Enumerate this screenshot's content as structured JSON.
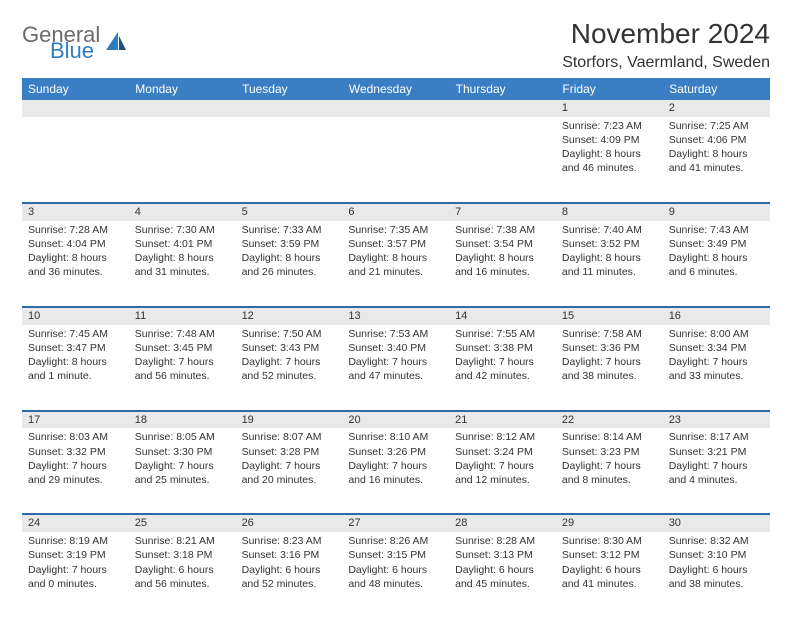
{
  "brand": {
    "general": "General",
    "blue": "Blue"
  },
  "title": "November 2024",
  "location": "Storfors, Vaermland, Sweden",
  "colors": {
    "header_bg": "#3a7fc4",
    "rule": "#2e6aa8",
    "daynum_bg": "#e9e9e9",
    "text": "#333333",
    "logo_gray": "#6b6b6b",
    "logo_blue": "#2f7ec0"
  },
  "weekdays": [
    "Sunday",
    "Monday",
    "Tuesday",
    "Wednesday",
    "Thursday",
    "Friday",
    "Saturday"
  ],
  "weeks": [
    [
      {
        "n": "",
        "sr": "",
        "ss": "",
        "dl": ""
      },
      {
        "n": "",
        "sr": "",
        "ss": "",
        "dl": ""
      },
      {
        "n": "",
        "sr": "",
        "ss": "",
        "dl": ""
      },
      {
        "n": "",
        "sr": "",
        "ss": "",
        "dl": ""
      },
      {
        "n": "",
        "sr": "",
        "ss": "",
        "dl": ""
      },
      {
        "n": "1",
        "sr": "Sunrise: 7:23 AM",
        "ss": "Sunset: 4:09 PM",
        "dl": "Daylight: 8 hours and 46 minutes."
      },
      {
        "n": "2",
        "sr": "Sunrise: 7:25 AM",
        "ss": "Sunset: 4:06 PM",
        "dl": "Daylight: 8 hours and 41 minutes."
      }
    ],
    [
      {
        "n": "3",
        "sr": "Sunrise: 7:28 AM",
        "ss": "Sunset: 4:04 PM",
        "dl": "Daylight: 8 hours and 36 minutes."
      },
      {
        "n": "4",
        "sr": "Sunrise: 7:30 AM",
        "ss": "Sunset: 4:01 PM",
        "dl": "Daylight: 8 hours and 31 minutes."
      },
      {
        "n": "5",
        "sr": "Sunrise: 7:33 AM",
        "ss": "Sunset: 3:59 PM",
        "dl": "Daylight: 8 hours and 26 minutes."
      },
      {
        "n": "6",
        "sr": "Sunrise: 7:35 AM",
        "ss": "Sunset: 3:57 PM",
        "dl": "Daylight: 8 hours and 21 minutes."
      },
      {
        "n": "7",
        "sr": "Sunrise: 7:38 AM",
        "ss": "Sunset: 3:54 PM",
        "dl": "Daylight: 8 hours and 16 minutes."
      },
      {
        "n": "8",
        "sr": "Sunrise: 7:40 AM",
        "ss": "Sunset: 3:52 PM",
        "dl": "Daylight: 8 hours and 11 minutes."
      },
      {
        "n": "9",
        "sr": "Sunrise: 7:43 AM",
        "ss": "Sunset: 3:49 PM",
        "dl": "Daylight: 8 hours and 6 minutes."
      }
    ],
    [
      {
        "n": "10",
        "sr": "Sunrise: 7:45 AM",
        "ss": "Sunset: 3:47 PM",
        "dl": "Daylight: 8 hours and 1 minute."
      },
      {
        "n": "11",
        "sr": "Sunrise: 7:48 AM",
        "ss": "Sunset: 3:45 PM",
        "dl": "Daylight: 7 hours and 56 minutes."
      },
      {
        "n": "12",
        "sr": "Sunrise: 7:50 AM",
        "ss": "Sunset: 3:43 PM",
        "dl": "Daylight: 7 hours and 52 minutes."
      },
      {
        "n": "13",
        "sr": "Sunrise: 7:53 AM",
        "ss": "Sunset: 3:40 PM",
        "dl": "Daylight: 7 hours and 47 minutes."
      },
      {
        "n": "14",
        "sr": "Sunrise: 7:55 AM",
        "ss": "Sunset: 3:38 PM",
        "dl": "Daylight: 7 hours and 42 minutes."
      },
      {
        "n": "15",
        "sr": "Sunrise: 7:58 AM",
        "ss": "Sunset: 3:36 PM",
        "dl": "Daylight: 7 hours and 38 minutes."
      },
      {
        "n": "16",
        "sr": "Sunrise: 8:00 AM",
        "ss": "Sunset: 3:34 PM",
        "dl": "Daylight: 7 hours and 33 minutes."
      }
    ],
    [
      {
        "n": "17",
        "sr": "Sunrise: 8:03 AM",
        "ss": "Sunset: 3:32 PM",
        "dl": "Daylight: 7 hours and 29 minutes."
      },
      {
        "n": "18",
        "sr": "Sunrise: 8:05 AM",
        "ss": "Sunset: 3:30 PM",
        "dl": "Daylight: 7 hours and 25 minutes."
      },
      {
        "n": "19",
        "sr": "Sunrise: 8:07 AM",
        "ss": "Sunset: 3:28 PM",
        "dl": "Daylight: 7 hours and 20 minutes."
      },
      {
        "n": "20",
        "sr": "Sunrise: 8:10 AM",
        "ss": "Sunset: 3:26 PM",
        "dl": "Daylight: 7 hours and 16 minutes."
      },
      {
        "n": "21",
        "sr": "Sunrise: 8:12 AM",
        "ss": "Sunset: 3:24 PM",
        "dl": "Daylight: 7 hours and 12 minutes."
      },
      {
        "n": "22",
        "sr": "Sunrise: 8:14 AM",
        "ss": "Sunset: 3:23 PM",
        "dl": "Daylight: 7 hours and 8 minutes."
      },
      {
        "n": "23",
        "sr": "Sunrise: 8:17 AM",
        "ss": "Sunset: 3:21 PM",
        "dl": "Daylight: 7 hours and 4 minutes."
      }
    ],
    [
      {
        "n": "24",
        "sr": "Sunrise: 8:19 AM",
        "ss": "Sunset: 3:19 PM",
        "dl": "Daylight: 7 hours and 0 minutes."
      },
      {
        "n": "25",
        "sr": "Sunrise: 8:21 AM",
        "ss": "Sunset: 3:18 PM",
        "dl": "Daylight: 6 hours and 56 minutes."
      },
      {
        "n": "26",
        "sr": "Sunrise: 8:23 AM",
        "ss": "Sunset: 3:16 PM",
        "dl": "Daylight: 6 hours and 52 minutes."
      },
      {
        "n": "27",
        "sr": "Sunrise: 8:26 AM",
        "ss": "Sunset: 3:15 PM",
        "dl": "Daylight: 6 hours and 48 minutes."
      },
      {
        "n": "28",
        "sr": "Sunrise: 8:28 AM",
        "ss": "Sunset: 3:13 PM",
        "dl": "Daylight: 6 hours and 45 minutes."
      },
      {
        "n": "29",
        "sr": "Sunrise: 8:30 AM",
        "ss": "Sunset: 3:12 PM",
        "dl": "Daylight: 6 hours and 41 minutes."
      },
      {
        "n": "30",
        "sr": "Sunrise: 8:32 AM",
        "ss": "Sunset: 3:10 PM",
        "dl": "Daylight: 6 hours and 38 minutes."
      }
    ]
  ]
}
